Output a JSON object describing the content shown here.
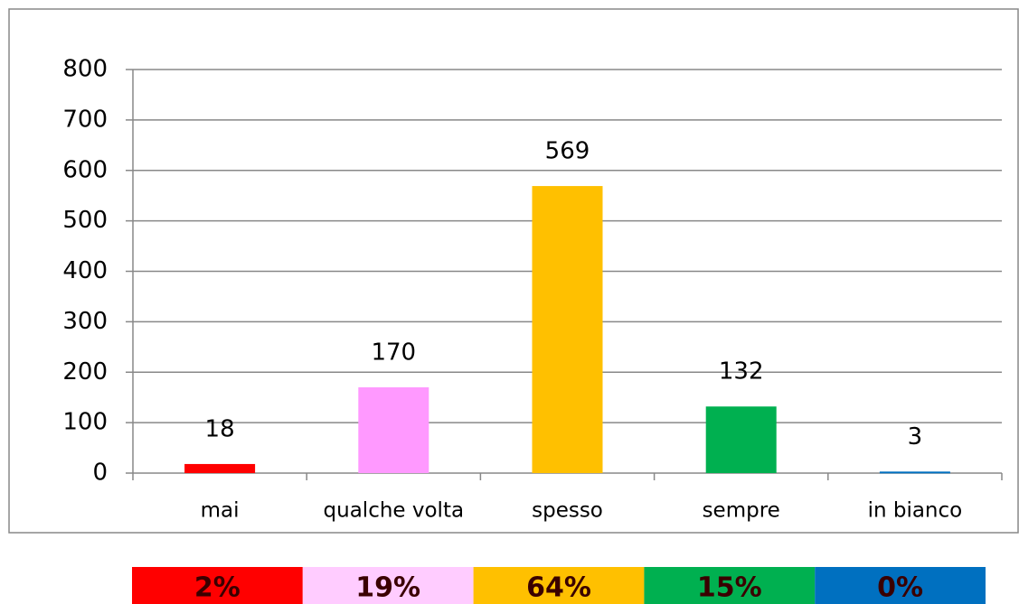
{
  "chart_data": {
    "type": "bar",
    "categories": [
      "mai",
      "qualche volta",
      "spesso",
      "sempre",
      "in bianco"
    ],
    "values": [
      18,
      170,
      569,
      132,
      3
    ],
    "colors": [
      "#ff0000",
      "#ff99ff",
      "#ffc000",
      "#00b050",
      "#0070c0"
    ],
    "ylim": [
      0,
      800
    ],
    "yticks": [
      0,
      100,
      200,
      300,
      400,
      500,
      600,
      700,
      800
    ],
    "grid": true,
    "shares": {
      "labels": [
        "2%",
        "19%",
        "64%",
        "15%",
        "0%"
      ],
      "colors": [
        "#ff0000",
        "#ffccff",
        "#ffc000",
        "#00b050",
        "#0070c0"
      ]
    }
  }
}
